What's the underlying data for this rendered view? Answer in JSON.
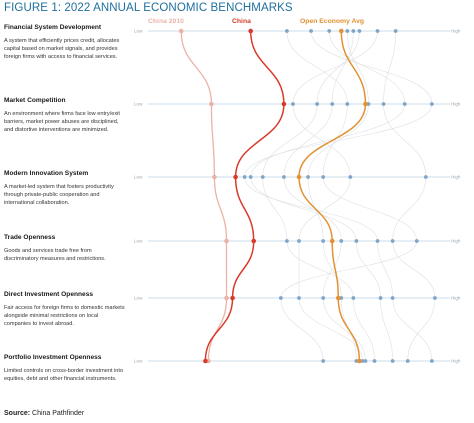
{
  "figure": {
    "title": "FIGURE 1: 2022 ANNUAL ECONOMIC BENCHMARKS",
    "source_label": "Source:",
    "source_text": " China Pathfinder"
  },
  "colors": {
    "china_2010": "#eab3a6",
    "china": "#d93a2b",
    "open_economy_avg": "#e39132",
    "other_economies": "#dcdfe3",
    "axis": "#b9d3e3",
    "dots": "#7fa5c8"
  },
  "chart_data": {
    "type": "parallel-coordinates",
    "axis_low_label": "Low",
    "axis_high_label": "High",
    "categories": [
      {
        "name": "Financial System Development",
        "description": "A system that efficiently prices credit, allocates capital based on market signals, and provides foreign firms with access to financial services."
      },
      {
        "name": "Market Competition",
        "description": "An environment where firms face low entry/exit barriers, market power abuses are disciplined, and distortive interventions are minimized."
      },
      {
        "name": "Modern Innovation System",
        "description": "A market-led system that fosters productivity through private-public cooperation and international collaboration."
      },
      {
        "name": "Trade Openness",
        "description": "Goods and services trade free from discriminatory measures and restrictions."
      },
      {
        "name": "Direct Investment Openness",
        "description": "Fair access for foreign firms to domestic markets alongside minimal restrictions on local companies to invest abroad."
      },
      {
        "name": "Portfolio Investment Openness",
        "description": "Limited controls on cross-border investment into equities, debt and other financial instruments."
      }
    ],
    "scale": [
      0,
      10
    ],
    "series": [
      {
        "name": "China 2010",
        "values": [
          1.1,
          2.1,
          2.2,
          2.6,
          2.6,
          2.0
        ]
      },
      {
        "name": "China",
        "values": [
          3.4,
          4.5,
          2.9,
          3.5,
          2.8,
          1.9
        ]
      },
      {
        "name": "Open Economy Avg",
        "values": [
          6.4,
          7.2,
          5.0,
          6.1,
          6.3,
          7.0
        ]
      }
    ],
    "other_economies": [
      [
        6.6,
        7.3,
        5.3,
        5.8,
        6.4,
        6.9
      ],
      [
        6.8,
        6.1,
        4.5,
        6.4,
        5.8,
        7.2
      ],
      [
        7.0,
        5.6,
        3.8,
        4.6,
        6.8,
        7.5
      ],
      [
        6.0,
        8.5,
        3.4,
        6.9,
        7.7,
        8.1
      ],
      [
        5.4,
        9.4,
        3.2,
        7.6,
        8.1,
        9.4
      ],
      [
        7.6,
        4.8,
        6.7,
        5.0,
        5.0,
        7.1
      ],
      [
        4.6,
        6.6,
        5.8,
        8.9,
        4.4,
        5.8
      ],
      [
        8.2,
        7.8,
        9.2,
        8.1,
        9.5,
        8.6
      ]
    ],
    "legend_placement": "top"
  }
}
